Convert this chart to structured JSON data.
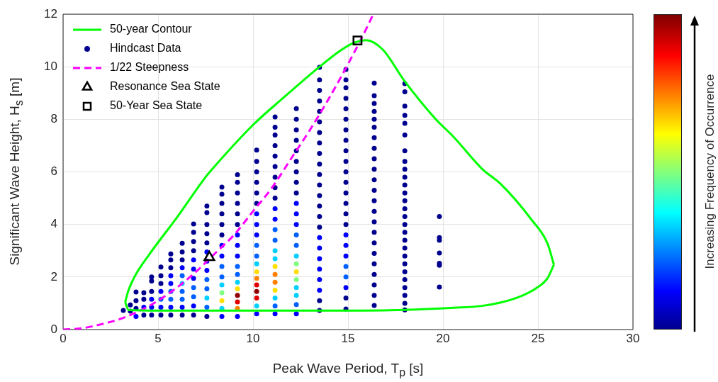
{
  "chart_data": {
    "type": "scatter",
    "xlabel": "Peak Wave Period, T$_{p}$ [s]",
    "ylabel": "Significant Wave Height, H$_{s}$ [m]",
    "clabel": "Increasing Frequency of Occurrence",
    "xlim": [
      0,
      30
    ],
    "xticks": [
      0,
      5,
      10,
      15,
      20,
      25,
      30
    ],
    "ylim": [
      0,
      12
    ],
    "yticks": [
      0,
      2,
      4,
      6,
      8,
      10,
      12
    ],
    "grid": true,
    "legend": "top left",
    "series": [
      {
        "name": "50-year Contour",
        "type": "line",
        "line_style": "solid",
        "color": "#00ff00",
        "x": [
          3.27,
          3.46,
          5,
          10,
          15,
          18,
          20.56,
          22.05,
          23.05,
          24.2,
          24.9,
          25.5,
          25.84
        ],
        "values": [
          1.03,
          0.74,
          0.72,
          0.72,
          0.72,
          0.75,
          0.83,
          0.9,
          1.03,
          1.3,
          1.57,
          1.95,
          2.47
        ]
      },
      {
        "type": "line",
        "line_style": "solid",
        "color": "#00ff00",
        "x": [
          3.27,
          3.4,
          3.77,
          4.51,
          6.0,
          7.5,
          7.87,
          9.99,
          11.6,
          13.47,
          14.59,
          15.21,
          15.96,
          16.83,
          17.95,
          19.56,
          20.56,
          22.05,
          23.05,
          24.66,
          25.5,
          25.84
        ],
        "values": [
          1.03,
          1.4,
          2.02,
          2.83,
          4.27,
          5.8,
          6.12,
          7.78,
          8.82,
          9.98,
          10.61,
          10.88,
          11.01,
          10.65,
          9.48,
          8.05,
          7.33,
          6.12,
          5.53,
          4.18,
          3.28,
          2.47
        ]
      },
      {
        "name": "Hindcast Data",
        "type": "scatter",
        "marker": "circle",
        "color": "#00008f",
        "x": [
          3.17,
          3.54,
          3.54,
          3.84,
          3.84,
          3.84,
          3.84,
          4.25,
          4.25,
          4.25,
          4.25,
          4.66,
          4.66,
          4.66,
          4.66,
          4.66,
          4.66,
          5.15,
          5.15,
          5.15,
          5.15,
          5.15,
          5.15,
          5.15,
          5.67,
          5.67,
          5.67,
          5.67,
          5.67,
          5.67,
          5.67,
          5.67,
          5.67,
          6.27,
          6.27,
          6.27,
          6.27,
          6.27,
          6.27,
          6.27,
          6.27,
          6.27,
          6.27,
          6.87,
          6.87,
          6.87,
          6.87,
          6.87,
          6.87,
          6.87,
          6.87,
          6.87,
          6.87,
          6.87,
          7.57,
          7.57,
          7.57,
          7.57,
          7.57,
          7.57,
          7.57,
          7.57,
          7.57,
          7.57,
          7.57,
          7.57,
          7.57,
          8.36,
          8.36,
          8.36,
          8.36,
          8.36,
          8.36,
          8.36,
          8.36,
          8.36,
          8.36,
          8.36,
          8.36,
          8.36,
          8.36,
          8.36,
          9.18,
          9.18,
          9.18,
          9.18,
          9.18,
          9.18,
          9.18,
          9.18,
          9.18,
          9.18,
          9.18,
          9.18,
          9.18,
          9.18,
          9.18,
          9.18,
          9.18,
          10.19,
          10.19,
          10.19,
          10.19,
          10.19,
          10.19,
          10.19,
          10.19,
          10.19,
          10.19,
          10.19,
          10.19,
          10.19,
          10.19,
          10.19,
          10.19,
          10.19,
          10.19,
          10.19,
          11.16,
          11.16,
          11.16,
          11.16,
          11.16,
          11.16,
          11.16,
          11.16,
          11.16,
          11.16,
          11.16,
          11.16,
          11.16,
          11.16,
          11.16,
          11.16,
          11.16,
          11.16,
          11.16,
          11.16,
          11.16,
          11.16,
          12.28,
          12.28,
          12.28,
          12.28,
          12.28,
          12.28,
          12.28,
          12.28,
          12.28,
          12.28,
          12.28,
          12.28,
          12.28,
          12.28,
          12.28,
          12.28,
          12.28,
          12.28,
          12.28,
          12.28,
          12.28,
          12.28,
          13.5,
          13.5,
          13.5,
          13.5,
          13.5,
          13.5,
          13.5,
          13.5,
          13.5,
          13.5,
          13.5,
          13.5,
          13.5,
          13.5,
          13.5,
          13.5,
          13.5,
          13.5,
          13.5,
          13.5,
          13.5,
          13.5,
          13.5,
          13.5,
          14.89,
          14.89,
          14.89,
          14.89,
          14.89,
          14.89,
          14.89,
          14.89,
          14.89,
          14.89,
          14.89,
          14.89,
          14.89,
          14.89,
          14.89,
          14.89,
          14.89,
          14.89,
          14.89,
          14.89,
          14.89,
          14.89,
          14.89,
          14.89,
          16.38,
          16.38,
          16.38,
          16.38,
          16.38,
          16.38,
          16.38,
          16.38,
          16.38,
          16.38,
          16.38,
          16.38,
          16.38,
          16.38,
          16.38,
          16.38,
          16.38,
          16.38,
          16.38,
          16.38,
          16.38,
          16.38,
          16.38,
          17.99,
          17.99,
          17.99,
          17.99,
          17.99,
          17.99,
          17.99,
          17.99,
          17.99,
          17.99,
          17.99,
          17.99,
          17.99,
          17.99,
          17.99,
          17.99,
          17.99,
          17.99,
          17.99,
          17.99,
          17.99,
          17.99,
          17.99,
          17.99,
          17.99,
          17.99,
          17.99,
          19.81,
          19.81,
          19.81,
          19.81,
          19.81,
          19.81,
          19.81
        ],
        "values": [
          0.73,
          0.7,
          0.94,
          0.5,
          0.8,
          1.1,
          1.43,
          0.55,
          0.85,
          1.15,
          1.4,
          0.55,
          0.85,
          1.15,
          1.45,
          1.85,
          2.0,
          0.55,
          0.85,
          1.15,
          1.45,
          1.75,
          2.05,
          2.38,
          0.55,
          0.85,
          1.15,
          1.45,
          1.75,
          2.05,
          2.35,
          2.65,
          2.88,
          0.55,
          0.85,
          1.15,
          1.45,
          1.75,
          2.05,
          2.35,
          2.65,
          2.95,
          3.28,
          0.55,
          0.9,
          1.25,
          1.6,
          1.95,
          2.3,
          2.65,
          3.0,
          3.35,
          3.7,
          4.02,
          0.5,
          0.85,
          1.2,
          1.55,
          1.9,
          2.25,
          2.6,
          2.95,
          3.3,
          3.65,
          4.0,
          4.45,
          4.7,
          0.5,
          0.8,
          1.1,
          1.4,
          1.7,
          2.0,
          2.4,
          2.8,
          3.2,
          3.6,
          4.0,
          4.4,
          4.8,
          5.15,
          5.42,
          0.5,
          0.8,
          1.05,
          1.3,
          1.55,
          1.8,
          2.1,
          2.4,
          2.8,
          3.2,
          3.6,
          4.0,
          4.4,
          4.8,
          5.2,
          5.6,
          5.89,
          0.6,
          0.9,
          1.2,
          1.45,
          1.7,
          1.95,
          2.2,
          2.5,
          2.8,
          3.2,
          3.6,
          4.0,
          4.4,
          4.8,
          5.2,
          5.6,
          6.0,
          6.4,
          6.83,
          0.6,
          0.9,
          1.2,
          1.5,
          1.8,
          2.1,
          2.4,
          2.7,
          3.0,
          3.4,
          3.8,
          4.2,
          4.6,
          5.0,
          5.4,
          5.8,
          6.2,
          6.6,
          7.0,
          7.4,
          7.7,
          8.09,
          0.6,
          0.95,
          1.3,
          1.6,
          1.9,
          2.2,
          2.5,
          2.8,
          3.2,
          3.6,
          4.0,
          4.4,
          4.8,
          5.2,
          5.6,
          6.0,
          6.4,
          6.8,
          7.2,
          7.6,
          8.0,
          8.41,
          0.73,
          1.1,
          1.5,
          1.9,
          2.3,
          2.7,
          3.1,
          3.5,
          3.9,
          4.3,
          4.7,
          5.1,
          5.5,
          5.9,
          6.3,
          6.7,
          7.1,
          7.5,
          7.9,
          8.3,
          8.7,
          9.1,
          9.5,
          9.98,
          0.78,
          1.2,
          1.6,
          2.0,
          2.4,
          2.8,
          3.2,
          3.6,
          4.0,
          4.4,
          4.8,
          5.2,
          5.6,
          6.0,
          6.4,
          6.8,
          7.2,
          7.6,
          8.0,
          8.4,
          8.8,
          9.2,
          9.5,
          9.9,
          0.92,
          1.3,
          1.7,
          2.1,
          2.5,
          2.9,
          3.3,
          3.7,
          4.1,
          4.5,
          4.9,
          5.3,
          5.7,
          6.1,
          6.5,
          6.9,
          7.3,
          7.7,
          8.0,
          8.3,
          8.6,
          8.9,
          9.38,
          0.75,
          1.0,
          1.3,
          1.6,
          1.9,
          2.2,
          2.5,
          2.8,
          3.1,
          3.4,
          3.7,
          4.0,
          4.3,
          4.6,
          4.9,
          5.2,
          5.5,
          5.8,
          6.1,
          6.4,
          6.8,
          7.4,
          7.85,
          8.15,
          8.5,
          9.05,
          9.36,
          1.62,
          2.45,
          2.52,
          2.91,
          3.4,
          3.5,
          4.3
        ],
        "colors": [
          "#00008f",
          "#00008f",
          "#00008f",
          "#0000ff",
          "#00008f",
          "#00008f",
          "#00008f",
          "#00008f",
          "#0000ff",
          "#00008f",
          "#00008f",
          "#00008f",
          "#0000ff",
          "#0000ff",
          "#00008f",
          "#00008f",
          "#00008f",
          "#00008f",
          "#0000ff",
          "#0060ff",
          "#0000ff",
          "#00008f",
          "#00008f",
          "#00008f",
          "#00008f",
          "#0000ff",
          "#0060ff",
          "#0060ff",
          "#0000ff",
          "#0000ff",
          "#00008f",
          "#00008f",
          "#00008f",
          "#00008f",
          "#0000ff",
          "#0060ff",
          "#0060ff",
          "#00d0ff",
          "#0060ff",
          "#0000ff",
          "#00008f",
          "#00008f",
          "#00008f",
          "#00008f",
          "#0000ff",
          "#0060ff",
          "#0060ff",
          "#0000ff",
          "#0000ff",
          "#0000ff",
          "#00008f",
          "#00008f",
          "#00008f",
          "#00008f",
          "#00008f",
          "#0060ff",
          "#00d0ff",
          "#0060ff",
          "#0060ff",
          "#0000ff",
          "#0000ff",
          "#0000ff",
          "#00008f",
          "#00008f",
          "#00008f",
          "#00008f",
          "#00008f",
          "#0000ff",
          "#00d0ff",
          "#ffdf00",
          "#80ff80",
          "#00d0ff",
          "#0060ff",
          "#0060ff",
          "#0000ff",
          "#0000ff",
          "#00008f",
          "#00008f",
          "#00008f",
          "#00008f",
          "#00008f",
          "#00008f",
          "#0000ff",
          "#ff8000",
          "#e00000",
          "#900000",
          "#ffdf00",
          "#00d0ff",
          "#0060ff",
          "#0060ff",
          "#0000ff",
          "#0000ff",
          "#0000ff",
          "#00008f",
          "#00008f",
          "#00008f",
          "#00008f",
          "#00008f",
          "#00008f",
          "#0000ff",
          "#00d0ff",
          "#e00000",
          "#900000",
          "#e00000",
          "#ff8000",
          "#ffdf00",
          "#00d0ff",
          "#0060ff",
          "#0060ff",
          "#0000ff",
          "#0000ff",
          "#0000ff",
          "#00008f",
          "#00008f",
          "#00008f",
          "#00008f",
          "#00008f",
          "#00008f",
          "#0000ff",
          "#0060ff",
          "#00d0ff",
          "#ffdf00",
          "#ff8000",
          "#ff8000",
          "#ffdf00",
          "#00d0ff",
          "#00d0ff",
          "#0060ff",
          "#0060ff",
          "#0000ff",
          "#0000ff",
          "#00008f",
          "#00008f",
          "#00008f",
          "#00008f",
          "#00008f",
          "#00008f",
          "#00008f",
          "#00008f",
          "#00008f",
          "#0000ff",
          "#0060ff",
          "#00d0ff",
          "#00d0ff",
          "#80ff80",
          "#ffdf00",
          "#80ff80",
          "#00d0ff",
          "#0060ff",
          "#0060ff",
          "#0000ff",
          "#0000ff",
          "#0000ff",
          "#00008f",
          "#00008f",
          "#00008f",
          "#00008f",
          "#00008f",
          "#00008f",
          "#00008f",
          "#00008f",
          "#00008f",
          "#00008f",
          "#00008f",
          "#0000ff",
          "#0000ff",
          "#0000ff",
          "#0000ff",
          "#0000ff",
          "#0000ff",
          "#00008f",
          "#00008f",
          "#00008f",
          "#00008f",
          "#00008f",
          "#00008f",
          "#00008f",
          "#00008f",
          "#00008f",
          "#00008f",
          "#00008f",
          "#00008f",
          "#00008f",
          "#00008f",
          "#00008f",
          "#00008f",
          "#00008f",
          "#00008f",
          "#0000ff",
          "#0060ff",
          "#0060ff",
          "#0000ff",
          "#0000ff",
          "#0000ff",
          "#00008f",
          "#00008f",
          "#00008f",
          "#00008f",
          "#00008f",
          "#00008f",
          "#00008f",
          "#00008f",
          "#00008f",
          "#00008f",
          "#00008f",
          "#00008f",
          "#00008f",
          "#00008f",
          "#00008f",
          "#00008f",
          "#00008f",
          "#00008f",
          "#00008f",
          "#00008f",
          "#00008f",
          "#00008f",
          "#00008f",
          "#00008f",
          "#00008f",
          "#00008f",
          "#00008f",
          "#00008f",
          "#00008f",
          "#00008f",
          "#00008f",
          "#00008f",
          "#00008f",
          "#00008f",
          "#00008f",
          "#00008f",
          "#00008f",
          "#00008f",
          "#00008f",
          "#00008f",
          "#00008f",
          "#00008f",
          "#00008f",
          "#00008f",
          "#00008f",
          "#00008f",
          "#00008f",
          "#00008f",
          "#00008f",
          "#00008f",
          "#00008f",
          "#00008f",
          "#00008f",
          "#00008f",
          "#00008f",
          "#00008f",
          "#00008f",
          "#00008f",
          "#00008f",
          "#00008f",
          "#00008f",
          "#00008f",
          "#00008f",
          "#00008f",
          "#00008f",
          "#00008f",
          "#00008f",
          "#00008f",
          "#00008f",
          "#00008f",
          "#00008f",
          "#00008f",
          "#00008f"
        ]
      },
      {
        "name": "1/22 Steepness",
        "type": "line",
        "line_style": "dashed",
        "color": "#ff00ff",
        "x": [
          0,
          1,
          2,
          3,
          4,
          5,
          6,
          7,
          8,
          9,
          10,
          11,
          12,
          13,
          14,
          15,
          16,
          16.33
        ],
        "values": [
          0,
          0.05,
          0.2,
          0.4,
          0.7,
          1.1,
          1.6,
          2.2,
          2.9,
          3.6,
          4.5,
          5.4,
          6.5,
          7.6,
          8.8,
          10.1,
          11.5,
          12
        ]
      },
      {
        "name": "Resonance Sea State",
        "type": "scatter",
        "marker": "triangle",
        "color": "#000000",
        "x": [
          7.7
        ],
        "values": [
          2.75
        ]
      },
      {
        "name": "50-Year Sea State",
        "type": "scatter",
        "marker": "square",
        "color": "#000000",
        "x": [
          15.5
        ],
        "values": [
          11.0
        ]
      }
    ]
  }
}
